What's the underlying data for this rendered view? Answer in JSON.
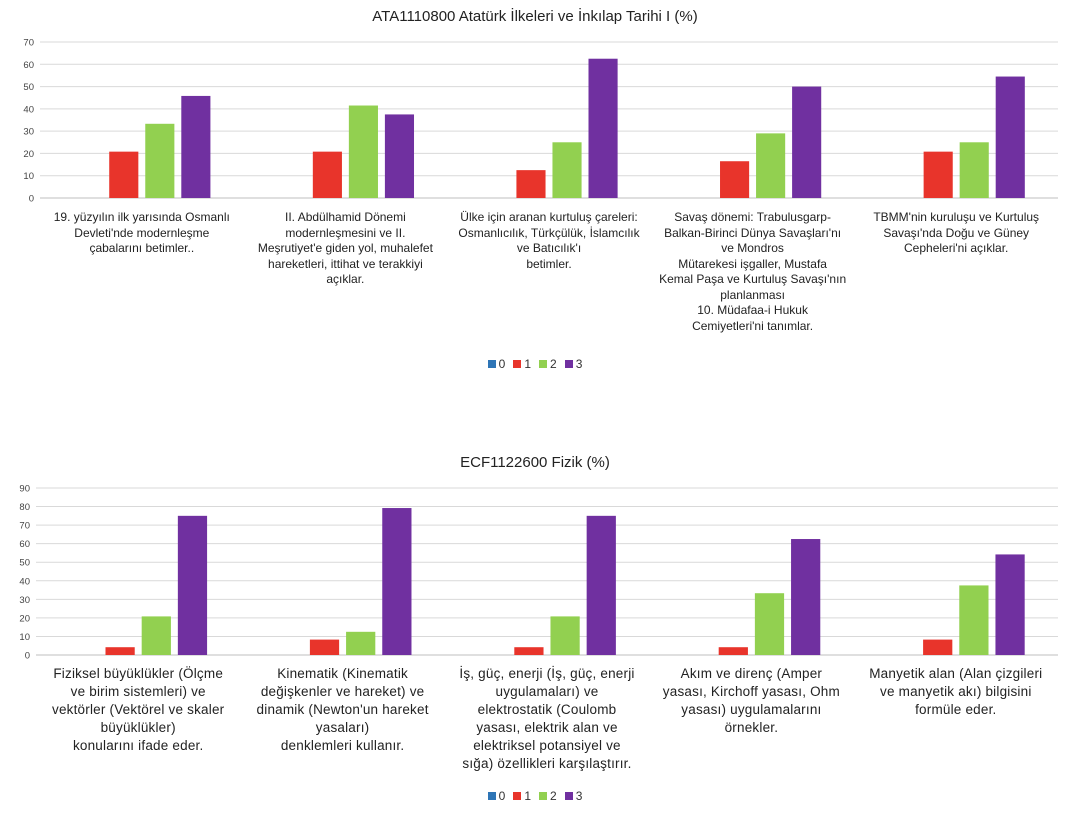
{
  "chart_data": [
    {
      "type": "bar",
      "title": "ATA1110800 Atatürk İlkeleri ve İnkılap Tarihi I (%)",
      "xlabel": "",
      "ylabel": "",
      "ylim": [
        0,
        70
      ],
      "yticks": [
        0,
        10,
        20,
        30,
        40,
        50,
        60,
        70
      ],
      "grid": true,
      "legend_position": "bottom",
      "categories": [
        "19. yüzyılın ilk yarısında Osmanlı\nDevleti'nde modernleşme\nçabalarını betimler..",
        "II. Abdülhamid Dönemi\nmodernleşmesini ve II.\nMeşrutiyet'e giden yol, muhalefet\nhareketleri, ittihat ve terakkiyi\naçıklar.",
        "Ülke için aranan kurtuluş çareleri:\nOsmanlıcılık, Türkçülük, İslamcılık\nve Batıcılık'ı\nbetimler.",
        "Savaş dönemi: Trabulusgarp-\nBalkan-Birinci Dünya Savaşları'nı\nve Mondros\nMütarekesi işgaller, Mustafa\nKemal Paşa ve Kurtuluş Savaşı'nın\nplanlanması\n10. Müdafaa-i Hukuk\nCemiyetleri'ni tanımlar.",
        "TBMM'nin kuruluşu ve Kurtuluş\nSavaşı'nda Doğu ve Güney\nCepheleri'ni açıklar."
      ],
      "series": [
        {
          "name": "0",
          "color": "#2e75b6",
          "values": [
            0,
            0,
            0,
            0,
            0
          ]
        },
        {
          "name": "1",
          "color": "#e8342b",
          "values": [
            20.8,
            20.8,
            12.5,
            16.5,
            20.8
          ]
        },
        {
          "name": "2",
          "color": "#92d050",
          "values": [
            33.3,
            41.5,
            25.0,
            29.0,
            25.0
          ]
        },
        {
          "name": "3",
          "color": "#7030a0",
          "values": [
            45.8,
            37.5,
            62.5,
            50.0,
            54.5
          ]
        }
      ]
    },
    {
      "type": "bar",
      "title": "ECF1122600 Fizik (%)",
      "xlabel": "",
      "ylabel": "",
      "ylim": [
        0,
        90
      ],
      "yticks": [
        0,
        10,
        20,
        30,
        40,
        50,
        60,
        70,
        80,
        90
      ],
      "grid": true,
      "legend_position": "bottom",
      "categories": [
        "Fiziksel büyüklükler (Ölçme\nve birim sistemleri) ve\nvektörler (Vektörel ve skaler\nbüyüklükler)\nkonularını ifade eder.",
        "Kinematik (Kinematik\ndeğişkenler ve hareket) ve\ndinamik (Newton'un hareket\nyasaları)\ndenklemleri kullanır.",
        "İş, güç, enerji (İş, güç, enerji\nuygulamaları) ve\nelektrostatik (Coulomb\nyasası, elektrik alan ve\nelektriksel potansiyel ve\nsığa) özellikleri karşılaştırır.",
        "Akım ve direnç (Amper\nyasası, Kirchoff yasası, Ohm\nyasası) uygulamalarını\nörnekler.",
        "Manyetik alan (Alan çizgileri\nve manyetik akı) bilgisini\nformüle eder."
      ],
      "series": [
        {
          "name": "0",
          "color": "#2e75b6",
          "values": [
            0,
            0,
            0,
            0,
            0
          ]
        },
        {
          "name": "1",
          "color": "#e8342b",
          "values": [
            4.2,
            8.3,
            4.2,
            4.2,
            8.3
          ]
        },
        {
          "name": "2",
          "color": "#92d050",
          "values": [
            20.8,
            12.5,
            20.8,
            33.3,
            37.5
          ]
        },
        {
          "name": "3",
          "color": "#7030a0",
          "values": [
            75.0,
            79.2,
            75.0,
            62.5,
            54.2
          ]
        }
      ]
    }
  ]
}
